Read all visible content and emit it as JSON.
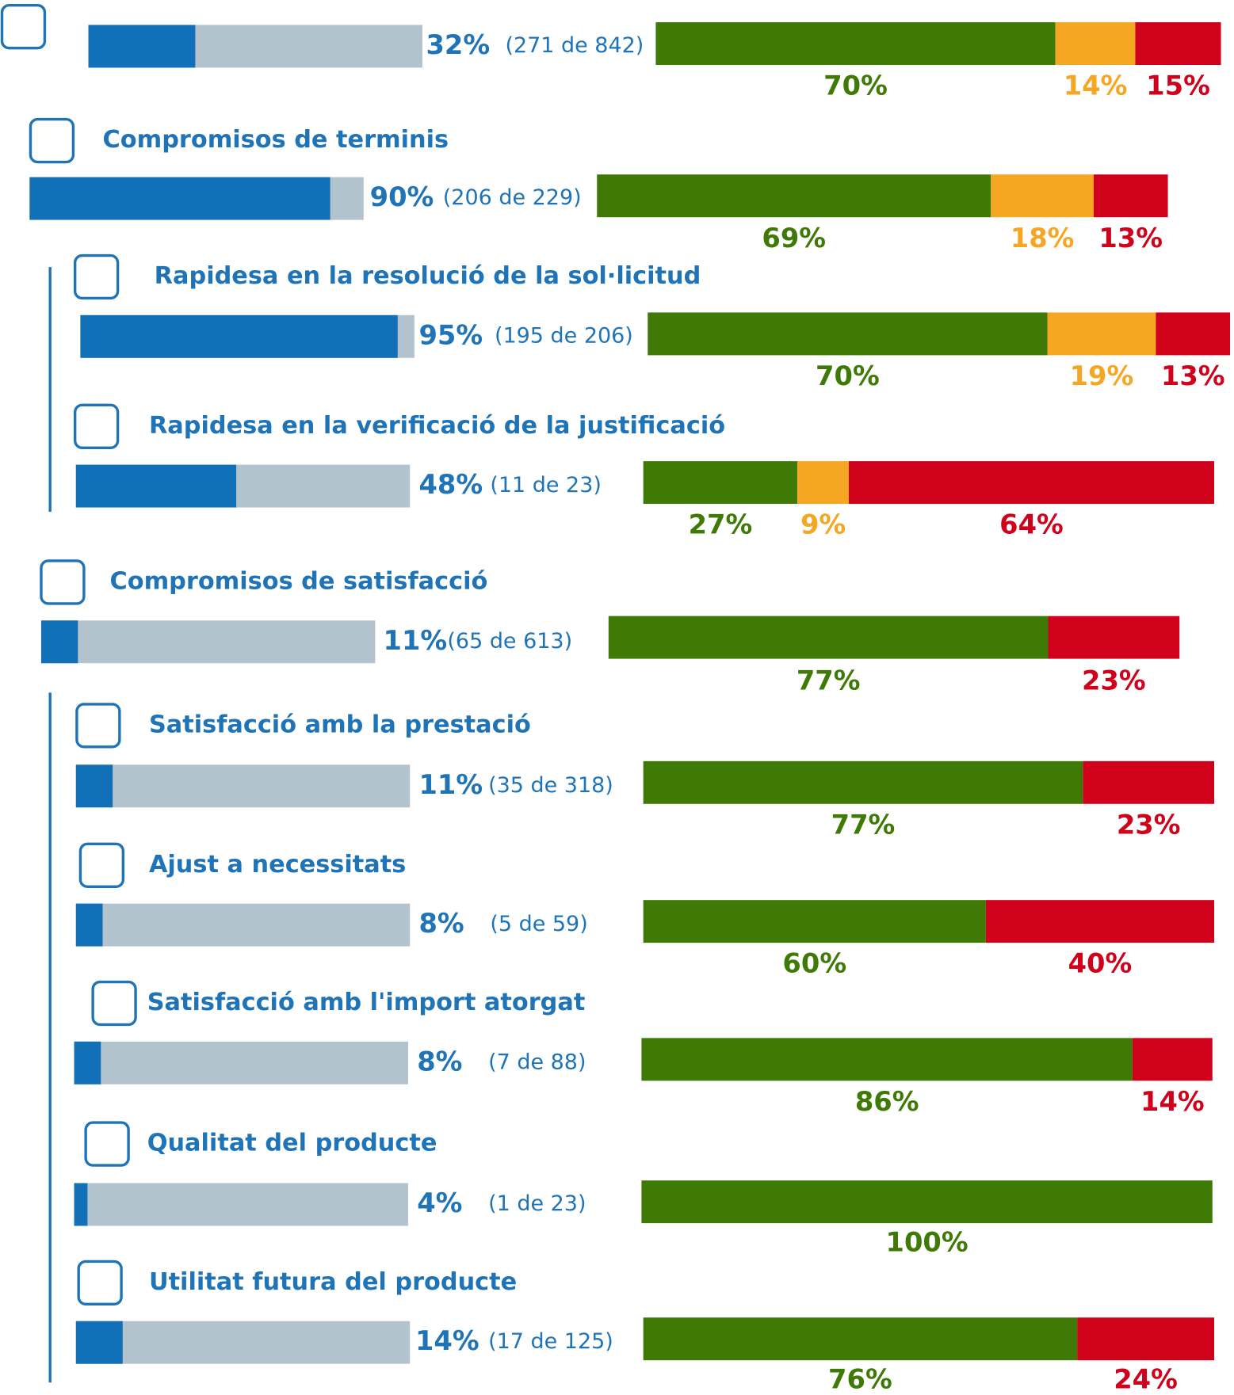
{
  "colors": {
    "done": "#1170b8",
    "rest": "#b3c3ce",
    "green": "#3f7a06",
    "orange": "#f5a623",
    "red": "#d0021b"
  },
  "rows": [
    {
      "value": 32,
      "value_label": "32%",
      "count": "(271 de 842)",
      "segments": [
        {
          "value": 70,
          "label": "70%",
          "color": "#3f7a06"
        },
        {
          "value": 14,
          "label": "14%",
          "color": "#f5a623"
        },
        {
          "value": 15,
          "label": "15%",
          "color": "#d0021b"
        }
      ]
    },
    {
      "title": "Compromisos de terminis",
      "value": 90,
      "value_label": "90%",
      "count": "(206 de 229)",
      "segments": [
        {
          "value": 69,
          "label": "69%",
          "color": "#3f7a06"
        },
        {
          "value": 18,
          "label": "18%",
          "color": "#f5a623"
        },
        {
          "value": 13,
          "label": "13%",
          "color": "#d0021b"
        }
      ]
    },
    {
      "title": "Rapidesa en la resolució de la sol·licitud",
      "value": 95,
      "value_label": "95%",
      "count": "(195 de 206)",
      "segments": [
        {
          "value": 70,
          "label": "70%",
          "color": "#3f7a06"
        },
        {
          "value": 19,
          "label": "19%",
          "color": "#f5a623"
        },
        {
          "value": 13,
          "label": "13%",
          "color": "#d0021b"
        }
      ]
    },
    {
      "title": "Rapidesa en la verificació de la justificació",
      "value": 48,
      "value_label": "48%",
      "count": "(11 de 23)",
      "segments": [
        {
          "value": 27,
          "label": "27%",
          "color": "#3f7a06"
        },
        {
          "value": 9,
          "label": "9%",
          "color": "#f5a623"
        },
        {
          "value": 64,
          "label": "64%",
          "color": "#d0021b"
        }
      ]
    },
    {
      "title": "Compromisos de satisfacció",
      "value": 11,
      "value_label": "11%",
      "count": "(65 de 613)",
      "segments": [
        {
          "value": 77,
          "label": "77%",
          "color": "#3f7a06"
        },
        {
          "value": 23,
          "label": "23%",
          "color": "#d0021b"
        }
      ]
    },
    {
      "title": "Satisfacció amb la prestació",
      "value": 11,
      "value_label": "11%",
      "count": "(35 de 318)",
      "segments": [
        {
          "value": 77,
          "label": "77%",
          "color": "#3f7a06"
        },
        {
          "value": 23,
          "label": "23%",
          "color": "#d0021b"
        }
      ]
    },
    {
      "title": "Ajust a necessitats",
      "value": 8,
      "value_label": "8%",
      "count": "(5 de 59)",
      "segments": [
        {
          "value": 60,
          "label": "60%",
          "color": "#3f7a06"
        },
        {
          "value": 40,
          "label": "40%",
          "color": "#d0021b"
        }
      ]
    },
    {
      "title": "Satisfacció amb l'import atorgat",
      "value": 8,
      "value_label": "8%",
      "count": "(7 de 88)",
      "segments": [
        {
          "value": 86,
          "label": "86%",
          "color": "#3f7a06"
        },
        {
          "value": 14,
          "label": "14%",
          "color": "#d0021b"
        }
      ]
    },
    {
      "title": "Qualitat del producte",
      "value": 4,
      "value_label": "4%",
      "count": "(1 de 23)",
      "segments": [
        {
          "value": 100,
          "label": "100%",
          "color": "#3f7a06"
        }
      ]
    },
    {
      "title": "Utilitat futura del producte",
      "value": 14,
      "value_label": "14%",
      "count": "(17 de 125)",
      "segments": [
        {
          "value": 76,
          "label": "76%",
          "color": "#3f7a06"
        },
        {
          "value": 24,
          "label": "24%",
          "color": "#d0021b"
        }
      ]
    }
  ]
}
